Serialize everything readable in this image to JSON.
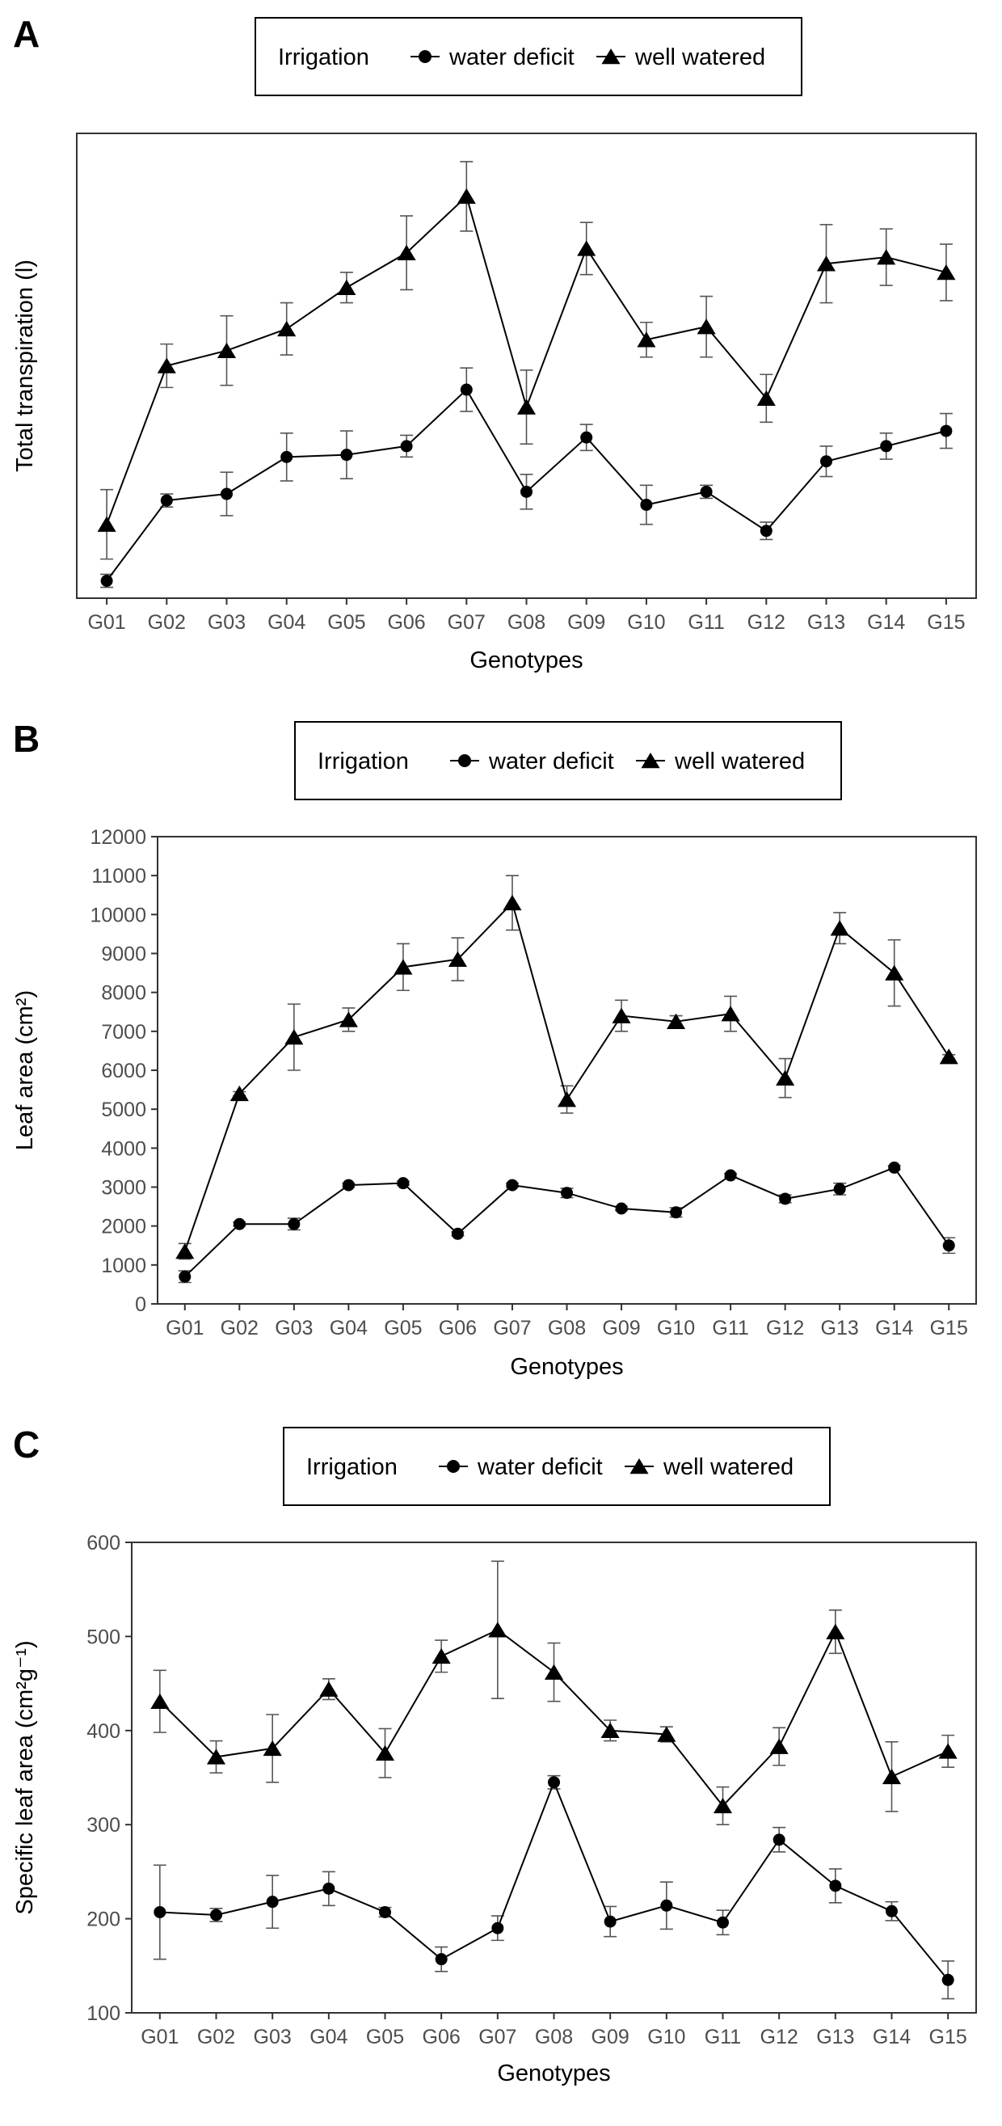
{
  "legend": {
    "title": "Irrigation",
    "water_deficit": "water deficit",
    "well_watered": "well watered"
  },
  "chart_data": [
    {
      "panel": "A",
      "type": "line",
      "categories": [
        "G01",
        "G02",
        "G03",
        "G04",
        "G05",
        "G06",
        "G07",
        "G08",
        "G09",
        "G10",
        "G11",
        "G12",
        "G13",
        "G14",
        "G15"
      ],
      "xlabel": "Genotypes",
      "ylabel": "Total transpiration (l)",
      "ylim": [
        0,
        100
      ],
      "y_ticks": [],
      "y_tick_labels_shown": false,
      "grid": false,
      "legend_position": "top-center",
      "series": [
        {
          "name": "water deficit",
          "marker": "circle",
          "values": [
            0.5,
            19,
            20.5,
            29,
            29.5,
            31.5,
            44.5,
            21,
            33.5,
            18,
            21,
            12,
            28,
            31.5,
            35
          ],
          "errors": [
            1.5,
            1.5,
            5,
            5.5,
            5.5,
            2.5,
            5,
            4,
            3,
            4.5,
            1.5,
            2,
            3.5,
            3,
            4
          ]
        },
        {
          "name": "well watered",
          "marker": "triangle",
          "values": [
            13.5,
            50,
            53.5,
            58.5,
            68,
            76,
            89,
            40.5,
            77,
            56,
            59,
            42.5,
            73.5,
            75,
            71.5
          ],
          "errors": [
            8,
            5,
            8,
            6,
            3.5,
            8.5,
            8,
            8.5,
            6,
            4,
            7,
            5.5,
            9,
            6.5,
            6.5
          ]
        }
      ]
    },
    {
      "panel": "B",
      "type": "line",
      "categories": [
        "G01",
        "G02",
        "G03",
        "G04",
        "G05",
        "G06",
        "G07",
        "G08",
        "G09",
        "G10",
        "G11",
        "G12",
        "G13",
        "G14",
        "G15"
      ],
      "xlabel": "Genotypes",
      "ylabel": "Leaf area (cm²)",
      "ylim": [
        0,
        12000
      ],
      "y_ticks": [
        "0",
        "1000",
        "2000",
        "3000",
        "4000",
        "5000",
        "6000",
        "7000",
        "8000",
        "9000",
        "10000",
        "11000",
        "12000"
      ],
      "y_tick_labels_shown": true,
      "grid": false,
      "legend_position": "top-center",
      "series": [
        {
          "name": "water deficit",
          "marker": "circle",
          "values": [
            700,
            2050,
            2050,
            3050,
            3100,
            1800,
            3050,
            2850,
            2450,
            2350,
            3300,
            2700,
            2950,
            3500,
            1500
          ],
          "errors": [
            150,
            50,
            150,
            50,
            50,
            50,
            50,
            120,
            50,
            120,
            50,
            100,
            150,
            50,
            200
          ]
        },
        {
          "name": "well watered",
          "marker": "triangle",
          "values": [
            1350,
            5400,
            6850,
            7300,
            8650,
            8850,
            10300,
            5250,
            7400,
            7250,
            7450,
            5800,
            9650,
            8500,
            6350
          ],
          "errors": [
            200,
            50,
            850,
            300,
            600,
            550,
            700,
            350,
            400,
            150,
            450,
            500,
            400,
            850,
            50
          ]
        }
      ]
    },
    {
      "panel": "C",
      "type": "line",
      "categories": [
        "G01",
        "G02",
        "G03",
        "G04",
        "G05",
        "G06",
        "G07",
        "G08",
        "G09",
        "G10",
        "G11",
        "G12",
        "G13",
        "G14",
        "G15"
      ],
      "xlabel": "Genotypes",
      "ylabel": "Specific leaf area (cm²g⁻¹)",
      "ylim": [
        100,
        600
      ],
      "y_ticks": [
        "100",
        "200",
        "300",
        "400",
        "500",
        "600"
      ],
      "y_tick_labels_shown": true,
      "grid": false,
      "legend_position": "top-center",
      "series": [
        {
          "name": "water deficit",
          "marker": "circle",
          "values": [
            207,
            204,
            218,
            232,
            207,
            157,
            190,
            345,
            197,
            214,
            196,
            284,
            235,
            208,
            135
          ],
          "errors": [
            50,
            7,
            28,
            18,
            5,
            13,
            13,
            7,
            16,
            25,
            13,
            13,
            18,
            10,
            20
          ]
        },
        {
          "name": "well watered",
          "marker": "triangle",
          "values": [
            431,
            372,
            381,
            444,
            376,
            479,
            507,
            462,
            400,
            396,
            320,
            383,
            505,
            351,
            378
          ],
          "errors": [
            33,
            17,
            36,
            11,
            26,
            17,
            73,
            31,
            11,
            8,
            20,
            20,
            23,
            37,
            17
          ]
        }
      ]
    }
  ]
}
